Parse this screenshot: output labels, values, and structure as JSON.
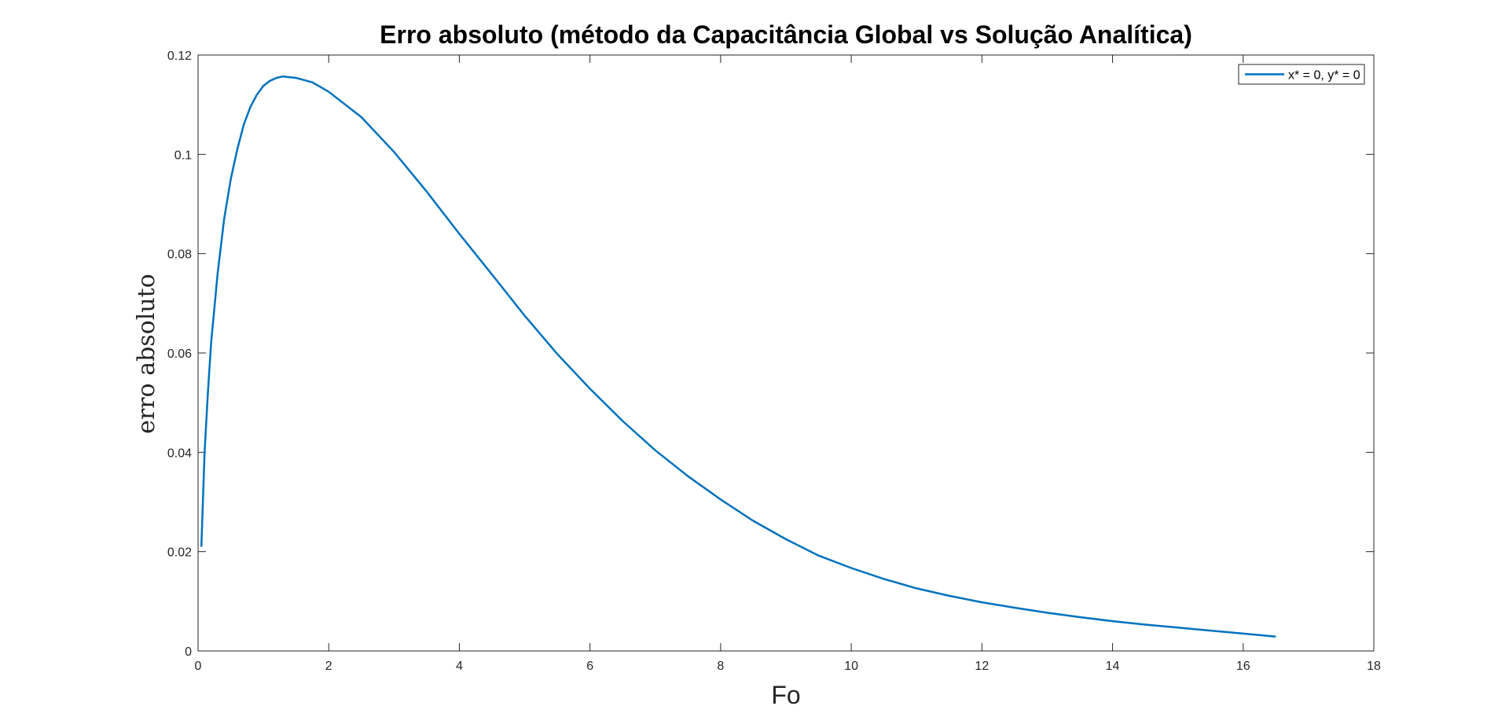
{
  "chart_data": {
    "type": "line",
    "title": "Erro absoluto (método da Capacitância Global vs Solução Analítica)",
    "xlabel": "Fo",
    "ylabel": "erro absoluto",
    "xlim": [
      0,
      18
    ],
    "ylim": [
      0,
      0.12
    ],
    "xticks": [
      0,
      2,
      4,
      6,
      8,
      10,
      12,
      14,
      16,
      18
    ],
    "yticks": [
      0,
      0.02,
      0.04,
      0.06,
      0.08,
      0.1,
      0.12
    ],
    "xtick_labels": [
      "0",
      "2",
      "4",
      "6",
      "8",
      "10",
      "12",
      "14",
      "16",
      "18"
    ],
    "ytick_labels": [
      "0",
      "0.02",
      "0.04",
      "0.06",
      "0.08",
      "0.1",
      "0.12"
    ],
    "grid": false,
    "legend_position": "top-right",
    "series": [
      {
        "name": "x* = 0, y* = 0",
        "color": "#0072BD",
        "x": [
          0.05,
          0.1,
          0.15,
          0.2,
          0.3,
          0.4,
          0.5,
          0.6,
          0.7,
          0.8,
          0.9,
          1.0,
          1.1,
          1.2,
          1.3,
          1.5,
          1.75,
          2.0,
          2.5,
          3.0,
          3.5,
          4.0,
          4.5,
          5.0,
          5.5,
          6.0,
          6.5,
          7.0,
          7.5,
          8.0,
          8.5,
          9.0,
          9.5,
          10.0,
          10.5,
          11.0,
          11.5,
          12.0,
          12.5,
          13.0,
          13.5,
          14.0,
          14.5,
          15.0,
          15.5,
          16.0,
          16.5
        ],
        "y": [
          0.021,
          0.04,
          0.052,
          0.062,
          0.076,
          0.087,
          0.095,
          0.101,
          0.106,
          0.1095,
          0.112,
          0.1138,
          0.1148,
          0.1154,
          0.1157,
          0.1154,
          0.1145,
          0.1126,
          0.1075,
          0.1005,
          0.0925,
          0.084,
          0.0758,
          0.0675,
          0.0598,
          0.0528,
          0.0463,
          0.0404,
          0.0352,
          0.0305,
          0.0262,
          0.0225,
          0.0192,
          0.0167,
          0.0145,
          0.0126,
          0.0111,
          0.0098,
          0.0087,
          0.0077,
          0.0068,
          0.006,
          0.0053,
          0.0047,
          0.0041,
          0.0035,
          0.0029
        ]
      }
    ]
  }
}
